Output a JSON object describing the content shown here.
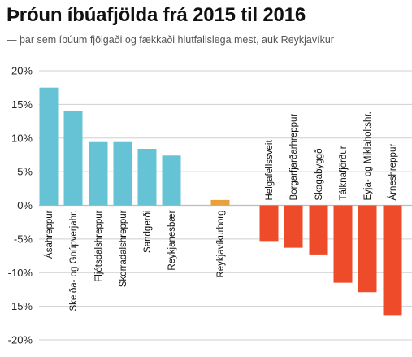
{
  "title": "Þróun íbúafjölda frá 2015 til 2016",
  "subtitle": "—  þar sem íbúum fjölgaði og fækkaði hlutfallslega mest, auk Reykjavíkur",
  "colors": {
    "increase": "#66c3d6",
    "reykjavik": "#e9a23b",
    "decrease": "#ee4b2b",
    "grid": "#cfcfcf",
    "text": "#222222"
  },
  "chart_data": {
    "type": "bar",
    "ylim": [
      -20,
      20
    ],
    "yticks": [
      20,
      15,
      10,
      5,
      0,
      -5,
      -10,
      -15,
      -20
    ],
    "ytick_labels": [
      "20%",
      "15%",
      "10%",
      "5%",
      "0%",
      "-5%",
      "-10%",
      "-15%",
      "-20%"
    ],
    "grid": true,
    "categories": [
      "Ásahreppur",
      "Skeiða- og Gnúpverjahr.",
      "Fljótsdalshreppur",
      "Skorradalshreppur",
      "Sandgerði",
      "Reykjanesbær",
      "Reykjavíkurborg",
      "Helgafellssveit",
      "Borgarfjarðarhreppur",
      "Skagabyggð",
      "Tálknafjörður",
      "Eyja- og Miklaholtshr.",
      "Árneshreppur"
    ],
    "groups": [
      "increase",
      "increase",
      "increase",
      "increase",
      "increase",
      "increase",
      "reykjavik",
      "decrease",
      "decrease",
      "decrease",
      "decrease",
      "decrease",
      "decrease"
    ],
    "values": [
      17.5,
      14.0,
      9.4,
      9.4,
      8.4,
      7.4,
      0.8,
      -5.3,
      -6.3,
      -7.3,
      -11.5,
      -12.9,
      -16.3
    ]
  }
}
